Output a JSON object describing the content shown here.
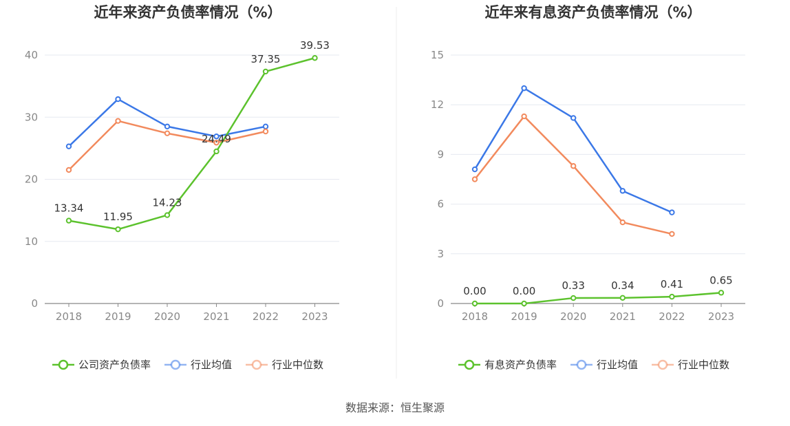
{
  "colors": {
    "company": "#5cc22d",
    "industry_avg": "#3b78e7",
    "industry_median": "#f28a5d",
    "grid": "#e6e9f0",
    "axis": "#888888",
    "divider": "#eeeeee"
  },
  "chart_data": [
    {
      "type": "line",
      "title": "近年来资产负债率情况（%）",
      "categories": [
        "2018",
        "2019",
        "2020",
        "2021",
        "2022",
        "2023"
      ],
      "ylim": [
        0,
        40
      ],
      "yticks": [
        "0",
        "10",
        "20",
        "30",
        "40"
      ],
      "grid": true,
      "legend_position": "bottom",
      "series": [
        {
          "name": "公司资产负债率",
          "color": "#5cc22d",
          "values": [
            13.34,
            11.95,
            14.23,
            24.49,
            37.35,
            39.53
          ],
          "labels": [
            "13.34",
            "11.95",
            "14.23",
            "24.49",
            "37.35",
            "39.53"
          ]
        },
        {
          "name": "行业均值",
          "color": "#3b78e7",
          "values": [
            25.3,
            32.9,
            28.5,
            26.9,
            28.5,
            null
          ]
        },
        {
          "name": "行业中位数",
          "color": "#f28a5d",
          "values": [
            21.5,
            29.4,
            27.4,
            25.9,
            27.7,
            null
          ]
        }
      ]
    },
    {
      "type": "line",
      "title": "近年来有息资产负债率情况（%）",
      "categories": [
        "2018",
        "2019",
        "2020",
        "2021",
        "2022",
        "2023"
      ],
      "ylim": [
        0,
        15
      ],
      "yticks": [
        "0",
        "3",
        "6",
        "9",
        "12",
        "15"
      ],
      "grid": true,
      "legend_position": "bottom",
      "series": [
        {
          "name": "有息资产负债率",
          "color": "#5cc22d",
          "values": [
            0.0,
            0.0,
            0.33,
            0.34,
            0.41,
            0.65
          ],
          "labels": [
            "0.00",
            "0.00",
            "0.33",
            "0.34",
            "0.41",
            "0.65"
          ]
        },
        {
          "name": "行业均值",
          "color": "#3b78e7",
          "values": [
            8.1,
            13.0,
            11.2,
            6.8,
            5.5,
            null
          ]
        },
        {
          "name": "行业中位数",
          "color": "#f28a5d",
          "values": [
            7.5,
            11.3,
            8.3,
            4.9,
            4.2,
            null
          ]
        }
      ]
    }
  ],
  "source_text": "数据来源：恒生聚源"
}
